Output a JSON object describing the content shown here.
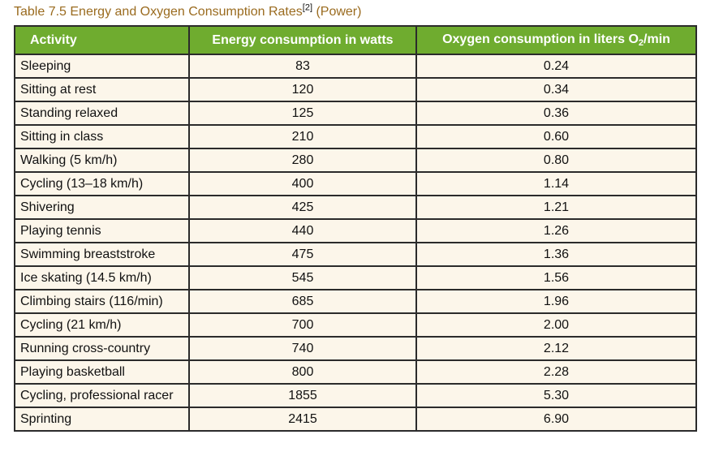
{
  "caption": {
    "title": "Table 7.5 Energy and Oxygen Consumption Rates",
    "reference": "[2]",
    "suffix": " (Power)"
  },
  "table": {
    "headers": {
      "activity": "Activity",
      "energy": "Energy consumption in watts",
      "oxygen_prefix": "Oxygen consumption in liters O",
      "oxygen_sub": "2",
      "oxygen_suffix": "/min"
    },
    "rows": [
      {
        "activity": "Sleeping",
        "energy": "83",
        "oxygen": "0.24"
      },
      {
        "activity": "Sitting at rest",
        "energy": "120",
        "oxygen": "0.34"
      },
      {
        "activity": "Standing relaxed",
        "energy": "125",
        "oxygen": "0.36"
      },
      {
        "activity": "Sitting in class",
        "energy": "210",
        "oxygen": "0.60"
      },
      {
        "activity": "Walking (5 km/h)",
        "energy": "280",
        "oxygen": "0.80"
      },
      {
        "activity": "Cycling (13–18 km/h)",
        "energy": "400",
        "oxygen": "1.14"
      },
      {
        "activity": "Shivering",
        "energy": "425",
        "oxygen": "1.21"
      },
      {
        "activity": "Playing tennis",
        "energy": "440",
        "oxygen": "1.26"
      },
      {
        "activity": "Swimming breaststroke",
        "energy": "475",
        "oxygen": "1.36"
      },
      {
        "activity": "Ice skating (14.5 km/h)",
        "energy": "545",
        "oxygen": "1.56"
      },
      {
        "activity": "Climbing stairs (116/min)",
        "energy": "685",
        "oxygen": "1.96"
      },
      {
        "activity": "Cycling (21 km/h)",
        "energy": "700",
        "oxygen": "2.00"
      },
      {
        "activity": "Running cross-country",
        "energy": "740",
        "oxygen": "2.12"
      },
      {
        "activity": "Playing basketball",
        "energy": "800",
        "oxygen": "2.28"
      },
      {
        "activity": "Cycling, professional racer",
        "energy": "1855",
        "oxygen": "5.30"
      },
      {
        "activity": "Sprinting",
        "energy": "2415",
        "oxygen": "6.90"
      }
    ]
  },
  "colors": {
    "header_bg": "#6fac2f",
    "row_bg": "#fcf6ea",
    "caption": "#9a6b1f"
  }
}
